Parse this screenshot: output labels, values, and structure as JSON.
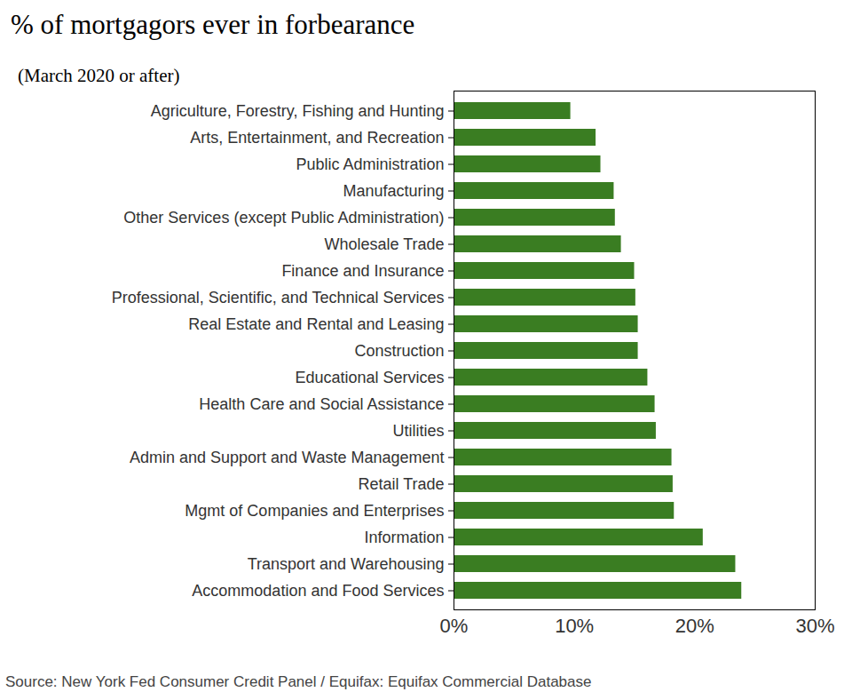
{
  "chart_data": {
    "type": "bar",
    "orientation": "horizontal",
    "title": "% of mortgagors ever in forbearance",
    "subtitle": "(March 2020 or after)",
    "caption": "Source:  New York Fed Consumer Credit Panel / Equifax: Equifax Commercial Database",
    "categories": [
      "Agriculture, Forestry, Fishing and Hunting",
      "Arts, Entertainment, and Recreation",
      "Public Administration",
      "Manufacturing",
      "Other Services (except Public Administration)",
      "Wholesale Trade",
      "Finance and Insurance",
      "Professional, Scientific, and Technical Services",
      "Real Estate and Rental and Leasing",
      "Construction",
      "Educational Services",
      "Health Care and Social Assistance",
      "Utilities",
      "Admin and Support and Waste Management",
      "Retail Trade",
      "Mgmt of Companies and Enterprises",
      "Information",
      "Transport and Warehousing",
      "Accommodation and Food Services"
    ],
    "values": [
      9.7,
      11.8,
      12.2,
      13.3,
      13.4,
      13.9,
      15.0,
      15.1,
      15.3,
      15.3,
      16.1,
      16.7,
      16.8,
      18.1,
      18.2,
      18.3,
      20.7,
      23.4,
      23.9
    ],
    "color": "#3a7d22",
    "xlim": [
      0,
      30
    ],
    "xticks": [
      {
        "value": 0,
        "label": "0%"
      },
      {
        "value": 10,
        "label": "10%"
      },
      {
        "value": 20,
        "label": "20%"
      },
      {
        "value": 30,
        "label": "30%"
      }
    ],
    "grid": false
  }
}
